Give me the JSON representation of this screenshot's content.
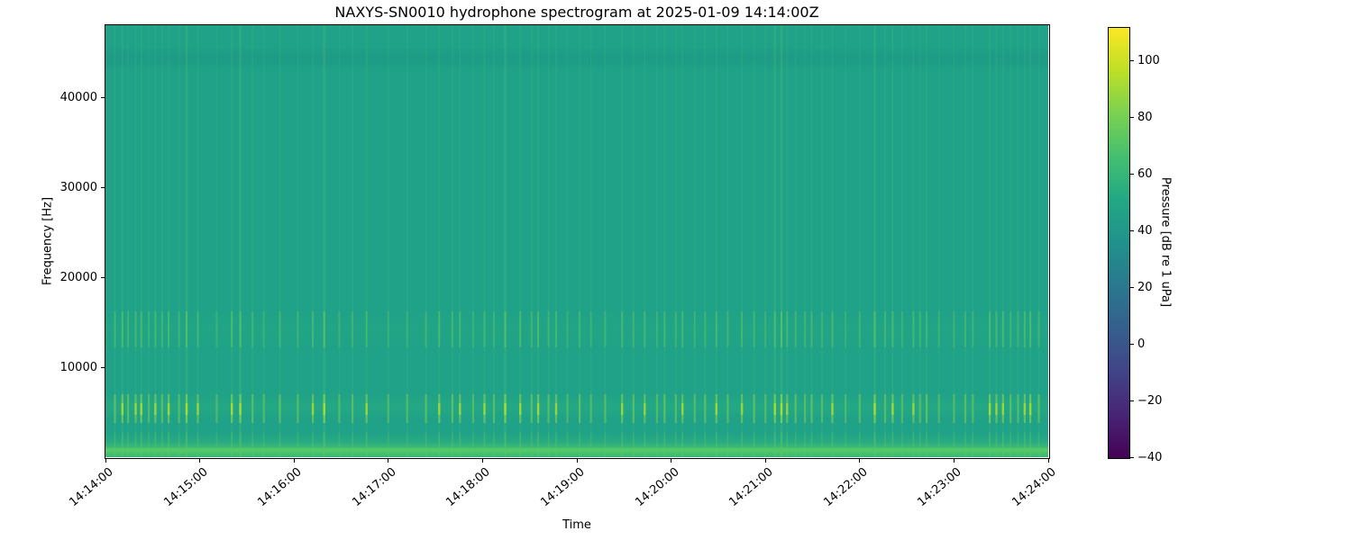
{
  "chart_data": {
    "type": "heatmap",
    "subtype": "spectrogram",
    "title": "NAXYS-SN0010 hydrophone spectrogram at 2025-01-09 14:14:00Z",
    "xlabel": "Time",
    "ylabel": "Frequency [Hz]",
    "x_ticks": [
      "14:14:00",
      "14:15:00",
      "14:16:00",
      "14:17:00",
      "14:18:00",
      "14:19:00",
      "14:20:00",
      "14:21:00",
      "14:22:00",
      "14:23:00",
      "14:24:00"
    ],
    "y_ticks": [
      10000,
      20000,
      30000,
      40000
    ],
    "ylim": [
      0,
      48000
    ],
    "xlim": [
      "14:14:00",
      "14:24:00"
    ],
    "grid": false,
    "colorbar": {
      "label": "Pressure [dB re 1 uPa]",
      "ticks": [
        100,
        80,
        60,
        40,
        20,
        0,
        -20,
        -40
      ],
      "vmin": -40,
      "vmax": 112,
      "colormap": "viridis",
      "stops": [
        [
          0.0,
          "#440154"
        ],
        [
          0.1,
          "#482475"
        ],
        [
          0.2,
          "#414487"
        ],
        [
          0.3,
          "#355f8d"
        ],
        [
          0.4,
          "#2a788e"
        ],
        [
          0.5,
          "#21918c"
        ],
        [
          0.6,
          "#22a884"
        ],
        [
          0.7,
          "#44bf70"
        ],
        [
          0.8,
          "#7ad151"
        ],
        [
          0.9,
          "#bddf26"
        ],
        [
          1.0,
          "#fde725"
        ]
      ]
    },
    "background_level_db": 52,
    "features": {
      "low_band": {
        "freq_hz": [
          0,
          2000
        ],
        "level_db": [
          60,
          75
        ],
        "note": "continuous bright low-frequency noise band with brightest line near 700 Hz"
      },
      "click_band": {
        "freq_hz": [
          4500,
          6500
        ],
        "level_db": [
          70,
          92
        ],
        "note": "impulsive transients peak here as bright dashes"
      },
      "mid_band": {
        "freq_hz": [
          12500,
          15500
        ],
        "level_db": [
          60,
          78
        ],
        "note": "secondary energy band of the transients"
      },
      "high_band": {
        "freq_hz": [
          43500,
          45500
        ],
        "level_db": [
          46,
          52
        ],
        "note": "faint mottled slightly darker band"
      }
    },
    "transients": [
      [
        0.01,
        0.55
      ],
      [
        0.018,
        0.8
      ],
      [
        0.024,
        0.5
      ],
      [
        0.032,
        0.6
      ],
      [
        0.038,
        0.75
      ],
      [
        0.046,
        0.4
      ],
      [
        0.053,
        0.65
      ],
      [
        0.06,
        0.5
      ],
      [
        0.067,
        0.7
      ],
      [
        0.078,
        0.45
      ],
      [
        0.086,
        0.95
      ],
      [
        0.098,
        0.6
      ],
      [
        0.118,
        0.35
      ],
      [
        0.134,
        0.8
      ],
      [
        0.143,
        0.9
      ],
      [
        0.156,
        0.5
      ],
      [
        0.168,
        0.4
      ],
      [
        0.185,
        0.55
      ],
      [
        0.204,
        0.45
      ],
      [
        0.22,
        0.6
      ],
      [
        0.232,
        1.0
      ],
      [
        0.248,
        0.4
      ],
      [
        0.262,
        0.5
      ],
      [
        0.277,
        0.65
      ],
      [
        0.3,
        0.35
      ],
      [
        0.32,
        0.4
      ],
      [
        0.34,
        0.5
      ],
      [
        0.354,
        0.7
      ],
      [
        0.368,
        0.55
      ],
      [
        0.376,
        0.6
      ],
      [
        0.39,
        0.4
      ],
      [
        0.402,
        0.65
      ],
      [
        0.412,
        0.5
      ],
      [
        0.424,
        0.95
      ],
      [
        0.44,
        0.7
      ],
      [
        0.452,
        0.5
      ],
      [
        0.459,
        0.8
      ],
      [
        0.47,
        0.45
      ],
      [
        0.478,
        0.6
      ],
      [
        0.49,
        0.35
      ],
      [
        0.503,
        0.55
      ],
      [
        0.515,
        0.4
      ],
      [
        0.53,
        0.45
      ],
      [
        0.548,
        0.65
      ],
      [
        0.56,
        0.5
      ],
      [
        0.572,
        0.6
      ],
      [
        0.585,
        0.4
      ],
      [
        0.593,
        0.55
      ],
      [
        0.605,
        0.45
      ],
      [
        0.612,
        0.6
      ],
      [
        0.625,
        0.4
      ],
      [
        0.636,
        0.5
      ],
      [
        0.648,
        0.7
      ],
      [
        0.66,
        0.45
      ],
      [
        0.675,
        0.6
      ],
      [
        0.688,
        0.55
      ],
      [
        0.7,
        0.4
      ],
      [
        0.71,
        0.85
      ],
      [
        0.717,
        1.0
      ],
      [
        0.723,
        0.6
      ],
      [
        0.732,
        0.5
      ],
      [
        0.742,
        0.45
      ],
      [
        0.749,
        0.55
      ],
      [
        0.76,
        0.4
      ],
      [
        0.771,
        0.65
      ],
      [
        0.785,
        0.35
      ],
      [
        0.8,
        0.45
      ],
      [
        0.816,
        0.9
      ],
      [
        0.827,
        0.5
      ],
      [
        0.835,
        0.75
      ],
      [
        0.845,
        0.4
      ],
      [
        0.857,
        0.6
      ],
      [
        0.864,
        0.45
      ],
      [
        0.871,
        0.55
      ],
      [
        0.884,
        0.35
      ],
      [
        0.9,
        0.4
      ],
      [
        0.912,
        0.5
      ],
      [
        0.92,
        0.45
      ],
      [
        0.938,
        0.8
      ],
      [
        0.945,
        0.6
      ],
      [
        0.952,
        0.7
      ],
      [
        0.96,
        0.5
      ],
      [
        0.968,
        0.45
      ],
      [
        0.975,
        0.65
      ],
      [
        0.981,
        0.75
      ],
      [
        0.99,
        0.5
      ]
    ]
  },
  "colors": {
    "figure_background": "#ffffff",
    "text": "#000000",
    "spine": "#000000",
    "heatmap_base": "#1fa287",
    "high_band_dark": "#1a9383",
    "mid_band_hint": "#2aae80",
    "click_band_hint": "#2eb47c",
    "low_band_green": "#35b779",
    "low_band_mid": "#46c06e",
    "low_band_bright": "#52c868",
    "low_band_bottom": "#3ab875",
    "streak_faint": "#4fc172",
    "streak_mid": "#66cb5e",
    "streak_click": "#8ed549",
    "streak_core": "#aadc32"
  }
}
